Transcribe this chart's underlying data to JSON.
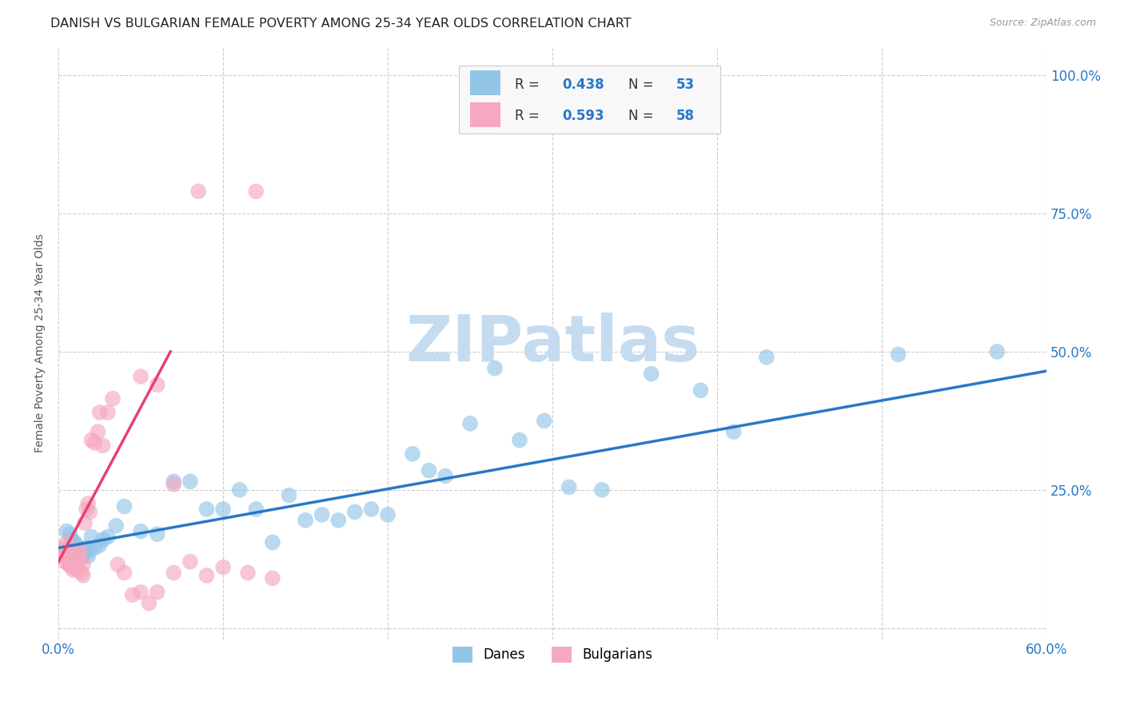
{
  "title": "DANISH VS BULGARIAN FEMALE POVERTY AMONG 25-34 YEAR OLDS CORRELATION CHART",
  "source": "Source: ZipAtlas.com",
  "ylabel": "Female Poverty Among 25-34 Year Olds",
  "xlim": [
    0.0,
    0.6
  ],
  "ylim": [
    -0.02,
    1.05
  ],
  "xticks": [
    0.0,
    0.1,
    0.2,
    0.3,
    0.4,
    0.5,
    0.6
  ],
  "yticks": [
    0.0,
    0.25,
    0.5,
    0.75,
    1.0
  ],
  "danes_R": 0.438,
  "danes_N": 53,
  "bulgarians_R": 0.593,
  "bulgarians_N": 58,
  "danes_color": "#92C5E8",
  "bulgarians_color": "#F5A8C0",
  "trend_danes_color": "#2878C8",
  "trend_bulgarians_color": "#E84070",
  "background_color": "#FFFFFF",
  "grid_color": "#CCCCCC",
  "watermark": "ZIPatlas",
  "watermark_color": "#C5DCF0",
  "title_fontsize": 11.5,
  "danes_x": [
    0.005,
    0.007,
    0.008,
    0.009,
    0.01,
    0.01,
    0.011,
    0.012,
    0.013,
    0.014,
    0.015,
    0.016,
    0.017,
    0.018,
    0.019,
    0.02,
    0.022,
    0.025,
    0.027,
    0.03,
    0.035,
    0.04,
    0.05,
    0.06,
    0.07,
    0.08,
    0.09,
    0.1,
    0.11,
    0.12,
    0.13,
    0.14,
    0.15,
    0.16,
    0.17,
    0.18,
    0.19,
    0.2,
    0.215,
    0.225,
    0.235,
    0.25,
    0.265,
    0.28,
    0.295,
    0.31,
    0.33,
    0.36,
    0.39,
    0.41,
    0.43,
    0.51,
    0.57
  ],
  "danes_y": [
    0.175,
    0.17,
    0.16,
    0.155,
    0.15,
    0.155,
    0.145,
    0.14,
    0.145,
    0.135,
    0.13,
    0.14,
    0.145,
    0.13,
    0.14,
    0.165,
    0.145,
    0.15,
    0.16,
    0.165,
    0.185,
    0.22,
    0.175,
    0.17,
    0.265,
    0.265,
    0.215,
    0.215,
    0.25,
    0.215,
    0.155,
    0.24,
    0.195,
    0.205,
    0.195,
    0.21,
    0.215,
    0.205,
    0.315,
    0.285,
    0.275,
    0.37,
    0.47,
    0.34,
    0.375,
    0.255,
    0.25,
    0.46,
    0.43,
    0.355,
    0.49,
    0.495,
    0.5
  ],
  "bulgarians_x": [
    0.002,
    0.003,
    0.003,
    0.004,
    0.004,
    0.005,
    0.005,
    0.005,
    0.006,
    0.006,
    0.006,
    0.007,
    0.007,
    0.008,
    0.008,
    0.008,
    0.009,
    0.009,
    0.009,
    0.01,
    0.01,
    0.011,
    0.011,
    0.012,
    0.012,
    0.013,
    0.013,
    0.014,
    0.015,
    0.015,
    0.016,
    0.017,
    0.018,
    0.019,
    0.02,
    0.022,
    0.024,
    0.025,
    0.027,
    0.03,
    0.033,
    0.036,
    0.04,
    0.045,
    0.05,
    0.055,
    0.06,
    0.07,
    0.08,
    0.09,
    0.1,
    0.115,
    0.13,
    0.05,
    0.06,
    0.07,
    0.085,
    0.12
  ],
  "bulgarians_y": [
    0.145,
    0.14,
    0.13,
    0.12,
    0.135,
    0.155,
    0.14,
    0.13,
    0.125,
    0.115,
    0.125,
    0.135,
    0.115,
    0.13,
    0.12,
    0.11,
    0.105,
    0.125,
    0.13,
    0.125,
    0.115,
    0.11,
    0.12,
    0.105,
    0.135,
    0.14,
    0.125,
    0.1,
    0.095,
    0.115,
    0.19,
    0.215,
    0.225,
    0.21,
    0.34,
    0.335,
    0.355,
    0.39,
    0.33,
    0.39,
    0.415,
    0.115,
    0.1,
    0.06,
    0.065,
    0.045,
    0.065,
    0.1,
    0.12,
    0.095,
    0.11,
    0.1,
    0.09,
    0.455,
    0.44,
    0.26,
    0.79,
    0.79
  ],
  "bulg_trend_x": [
    0.0,
    0.068
  ],
  "bulg_trend_y": [
    0.12,
    0.5
  ],
  "danes_trend_x": [
    0.0,
    0.6
  ],
  "danes_trend_y": [
    0.145,
    0.465
  ]
}
